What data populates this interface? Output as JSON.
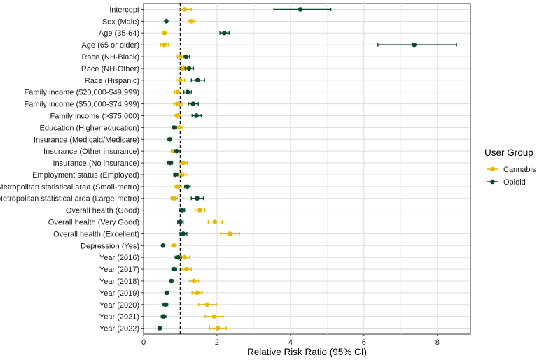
{
  "chart_data": {
    "type": "scatter",
    "subtype": "forest-plot",
    "xlabel": "Relative Risk Ratio (95% CI)",
    "ylabel": "",
    "xlim": [
      0,
      8.9
    ],
    "xticks": [
      0,
      2,
      4,
      6,
      8
    ],
    "reference_line": 1,
    "grid": true,
    "legend": {
      "title": "User Group",
      "position": "right"
    },
    "categories": [
      "Intercept",
      "Sex (Male)",
      "Age (35-64)",
      "Age (65 or older)",
      "Race (NH-Black)",
      "Race (NH-Other)",
      "Race (Hispanic)",
      "Family income ($20,000-$49,999)",
      "Family income ($50,000-$74,999)",
      "Family income (>$75,000)",
      "Education (Higher education)",
      "Insurance (Medicaid/Medicare)",
      "Insurance (Other insurance)",
      "Insurance (No insurance)",
      "Employment status (Employed)",
      "Metropolitan statistical area (Small-metro)",
      "Metropolitan statistical area (Large-metro)",
      "Overall health (Good)",
      "Overall health (Very Good)",
      "Overall health (Excellent)",
      "Depression (Yes)",
      "Year (2016)",
      "Year (2017)",
      "Year (2018)",
      "Year (2019)",
      "Year (2020)",
      "Year (2021)",
      "Year (2022)"
    ],
    "series": [
      {
        "name": "Cannabis",
        "color": "#e6b800",
        "estimate": [
          1.12,
          1.3,
          0.57,
          0.57,
          1.0,
          1.07,
          1.0,
          0.93,
          0.94,
          0.93,
          0.98,
          0.72,
          0.82,
          1.08,
          1.05,
          0.94,
          0.83,
          1.53,
          1.94,
          2.35,
          0.83,
          1.12,
          1.17,
          1.37,
          1.46,
          1.73,
          1.92,
          2.02
        ],
        "ci_low": [
          0.97,
          1.22,
          0.55,
          0.47,
          0.92,
          0.96,
          0.89,
          0.85,
          0.84,
          0.86,
          0.9,
          0.68,
          0.75,
          0.98,
          0.95,
          0.86,
          0.75,
          1.4,
          1.76,
          2.1,
          0.77,
          1.0,
          1.05,
          1.25,
          1.32,
          1.5,
          1.68,
          1.8
        ],
        "ci_high": [
          1.3,
          1.39,
          0.6,
          0.68,
          1.1,
          1.17,
          1.12,
          1.02,
          1.05,
          1.01,
          1.07,
          0.77,
          0.9,
          1.19,
          1.16,
          1.03,
          0.92,
          1.67,
          2.14,
          2.61,
          0.89,
          1.25,
          1.3,
          1.5,
          1.6,
          1.98,
          2.17,
          2.25
        ]
      },
      {
        "name": "Opioid",
        "color": "#0d4a27",
        "estimate": [
          4.27,
          0.62,
          2.2,
          7.37,
          1.16,
          1.24,
          1.47,
          1.2,
          1.35,
          1.44,
          0.83,
          0.71,
          0.9,
          0.72,
          0.87,
          1.19,
          1.46,
          1.05,
          1.0,
          1.08,
          0.53,
          0.94,
          0.83,
          0.76,
          0.63,
          0.59,
          0.54,
          0.44
        ],
        "ci_low": [
          3.55,
          0.6,
          2.08,
          6.38,
          1.08,
          1.13,
          1.3,
          1.1,
          1.22,
          1.32,
          0.78,
          0.68,
          0.84,
          0.66,
          0.82,
          1.12,
          1.3,
          0.98,
          0.93,
          0.99,
          0.5,
          0.86,
          0.77,
          0.71,
          0.59,
          0.53,
          0.48,
          0.41
        ],
        "ci_high": [
          5.1,
          0.65,
          2.33,
          8.52,
          1.25,
          1.36,
          1.66,
          1.3,
          1.49,
          1.57,
          0.9,
          0.75,
          0.97,
          0.79,
          0.93,
          1.27,
          1.63,
          1.12,
          1.08,
          1.18,
          0.56,
          1.03,
          0.9,
          0.81,
          0.68,
          0.66,
          0.61,
          0.47
        ]
      }
    ]
  }
}
